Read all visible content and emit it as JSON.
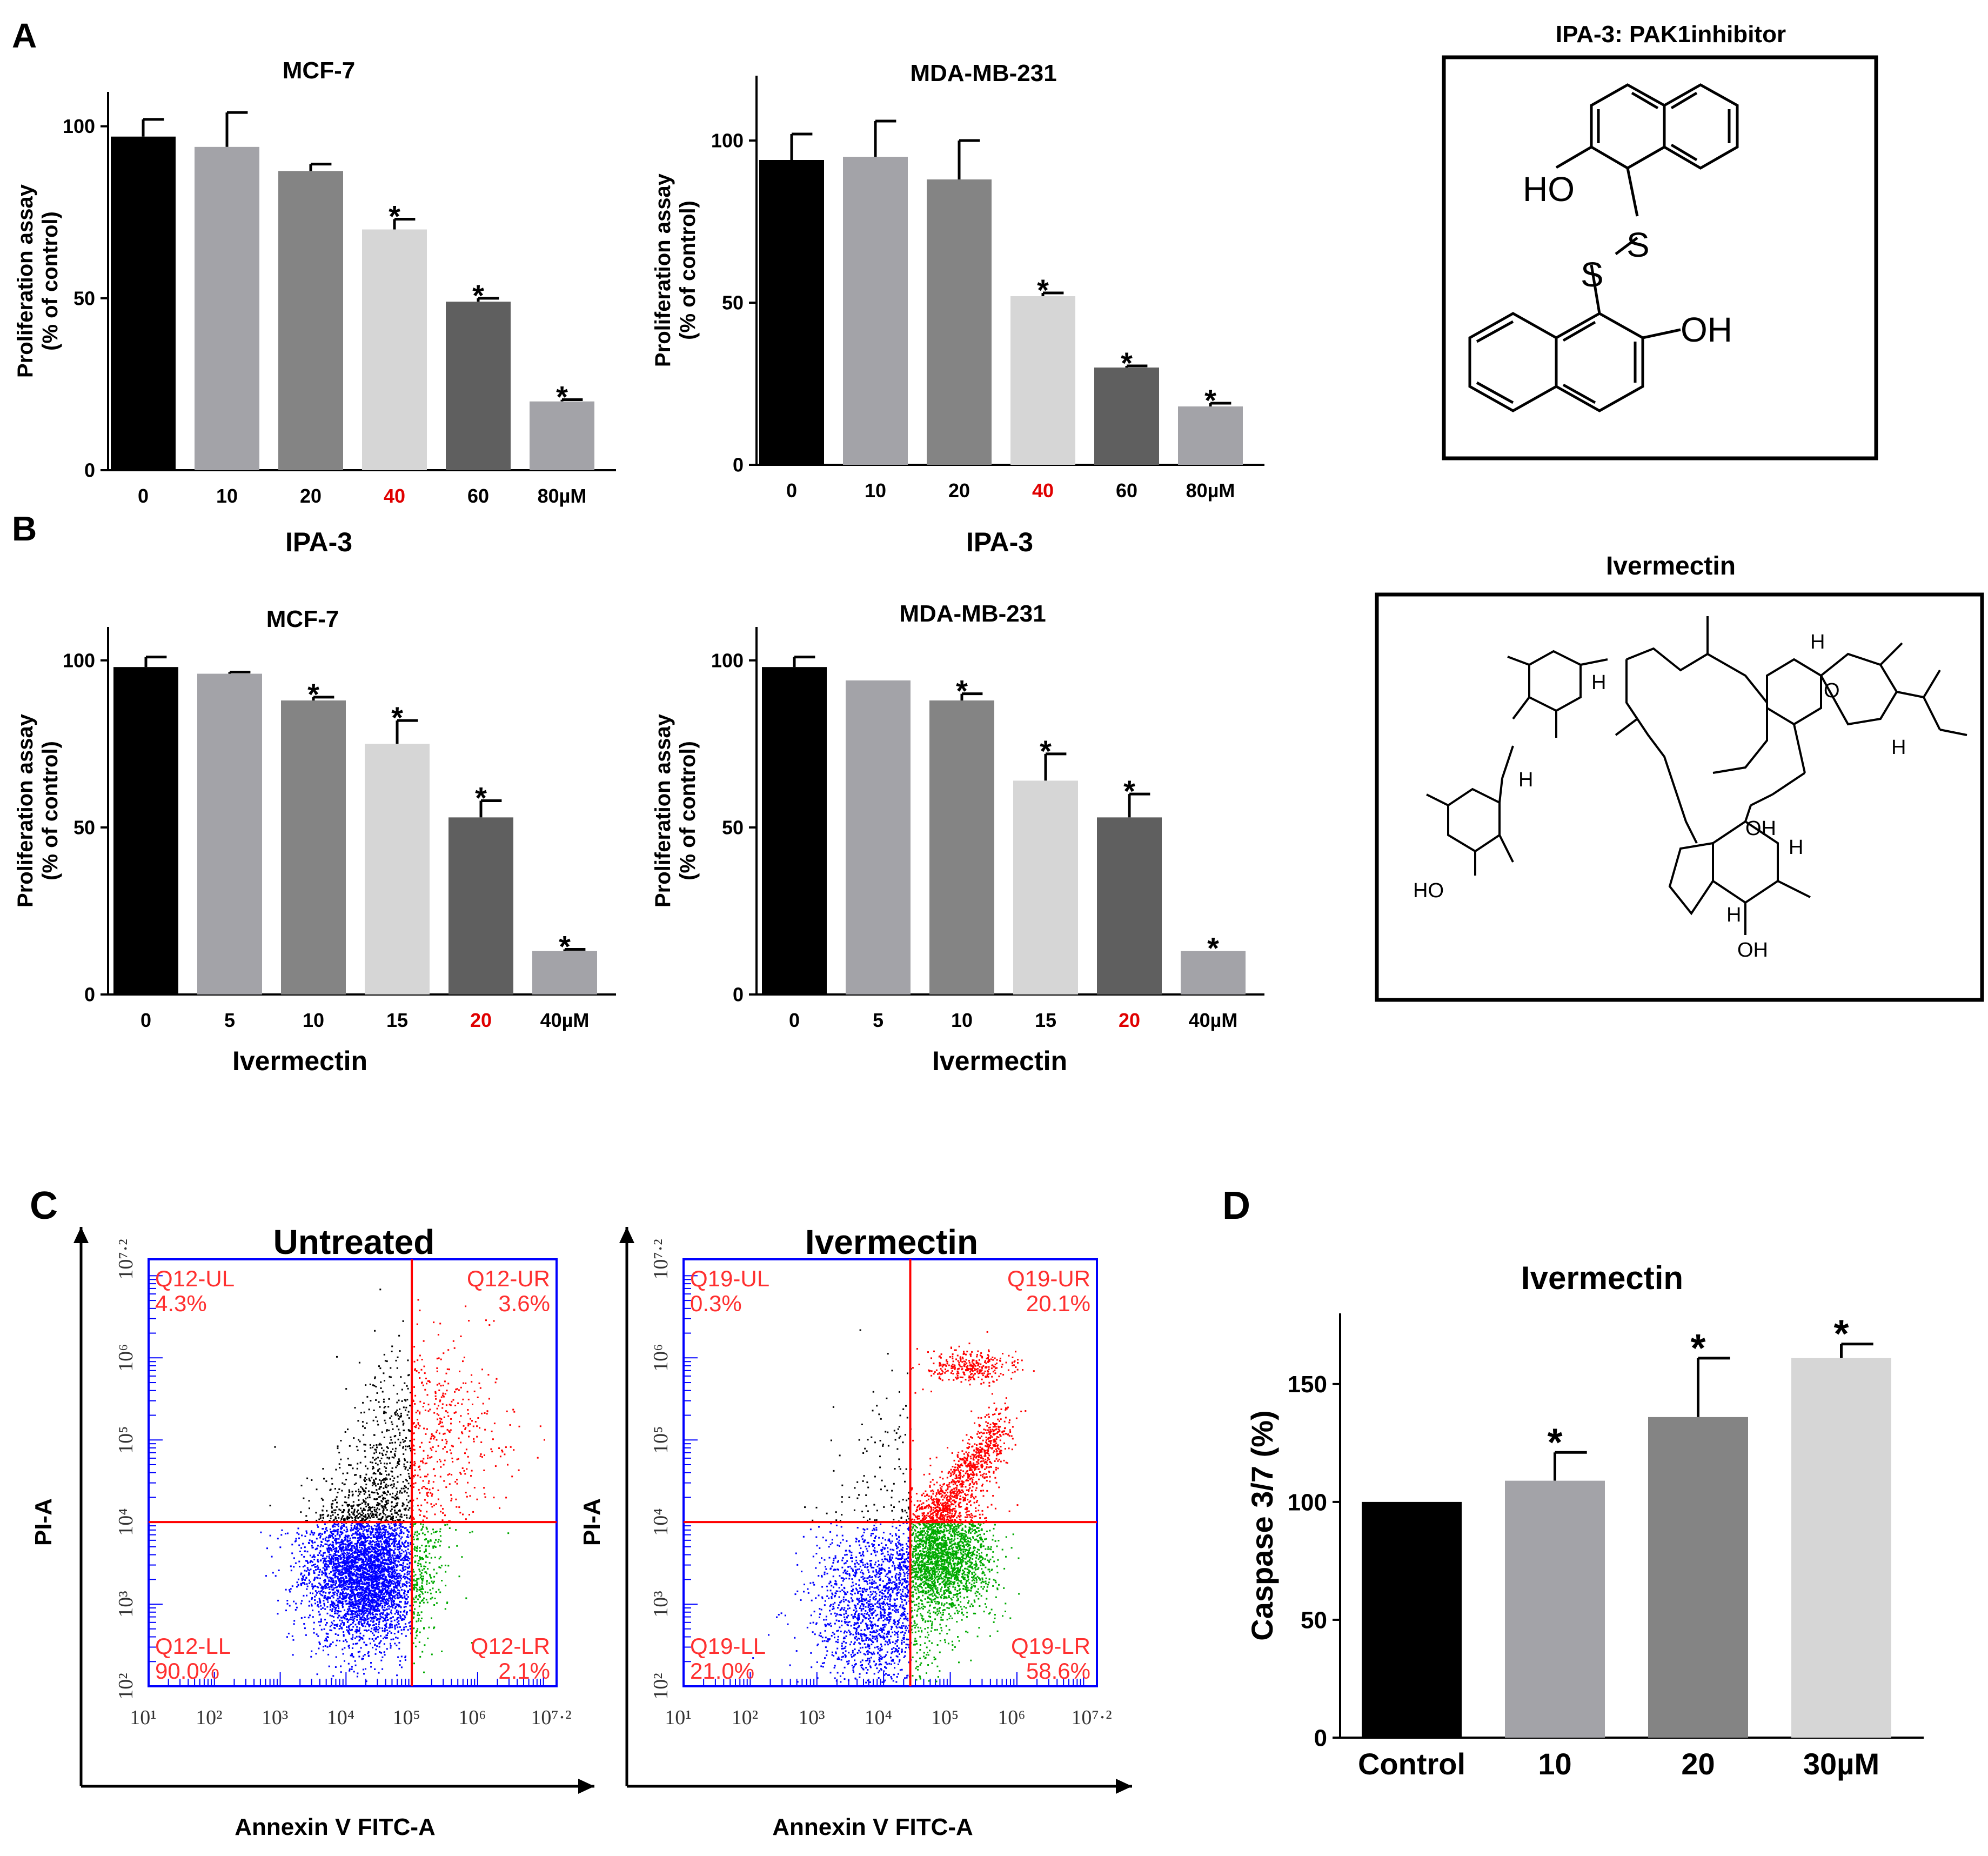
{
  "figure": {
    "panel_labels": {
      "A": "A",
      "B": "B",
      "C": "C",
      "D": "D"
    }
  },
  "colors": {
    "black": "#000000",
    "gray1": "#a3a3a8",
    "gray2": "#848484",
    "gray3": "#d6d6d6",
    "gray4": "#5f5f5f",
    "red_tick": "#e00000",
    "flow_blue": "#0000ff",
    "flow_red": "#ff0000",
    "flow_green": "#00aa00",
    "flow_black": "#000000",
    "gate_red": "#ff0000",
    "axis_blue": "#0000ff",
    "quad_text": "#ff3030"
  },
  "chart_data": [
    {
      "id": "A_mcf7",
      "type": "bar",
      "title": "MCF-7",
      "xlabel": "IPA-3",
      "ylabel_lines": [
        "Proliferation assay",
        "(% of control)"
      ],
      "categories": [
        "0",
        "10",
        "20",
        "40",
        "60",
        "80µM"
      ],
      "highlight_category": "40",
      "values": [
        97,
        94,
        87,
        70,
        49,
        20
      ],
      "errors": [
        5,
        10,
        2,
        3,
        1,
        0.5
      ],
      "significant": [
        "",
        "",
        "",
        "*",
        "*",
        "*"
      ],
      "yticks": [
        0,
        50,
        100
      ],
      "ylim": [
        0,
        110
      ]
    },
    {
      "id": "A_mda",
      "type": "bar",
      "title": "MDA-MB-231",
      "xlabel": "IPA-3",
      "ylabel_lines": [
        "Proliferation assay",
        "(% of control)"
      ],
      "categories": [
        "0",
        "10",
        "20",
        "40",
        "60",
        "80µM"
      ],
      "highlight_category": "40",
      "values": [
        94,
        95,
        88,
        52,
        30,
        18
      ],
      "errors": [
        8,
        11,
        12,
        1,
        0.5,
        1
      ],
      "significant": [
        "",
        "",
        "",
        "*",
        "*",
        "*"
      ],
      "yticks": [
        0,
        50,
        100
      ],
      "ylim": [
        0,
        120
      ]
    },
    {
      "id": "B_mcf7",
      "type": "bar",
      "title": "MCF-7",
      "xlabel": "Ivermectin",
      "ylabel_lines": [
        "Proliferation assay",
        "(% of control)"
      ],
      "categories": [
        "0",
        "5",
        "10",
        "15",
        "20",
        "40µM"
      ],
      "highlight_category": "20",
      "values": [
        98,
        96,
        88,
        75,
        53,
        13
      ],
      "errors": [
        3,
        0.5,
        1,
        7,
        5,
        0.5
      ],
      "significant": [
        "",
        "",
        "*",
        "*",
        "*",
        "*"
      ],
      "yticks": [
        0,
        50,
        100
      ],
      "ylim": [
        0,
        110
      ]
    },
    {
      "id": "B_mda",
      "type": "bar",
      "title": "MDA-MB-231",
      "xlabel": "Ivermectin",
      "ylabel_lines": [
        "Proliferation assay",
        "(% of control)"
      ],
      "categories": [
        "0",
        "5",
        "10",
        "15",
        "20",
        "40µM"
      ],
      "highlight_category": "20",
      "values": [
        98,
        94,
        88,
        64,
        53,
        13
      ],
      "errors": [
        3,
        0,
        2,
        8,
        7,
        0
      ],
      "significant": [
        "",
        "",
        "*",
        "*",
        "*",
        "*"
      ],
      "yticks": [
        0,
        50,
        100
      ],
      "ylim": [
        0,
        110
      ]
    },
    {
      "id": "D_caspase",
      "type": "bar",
      "title": "Ivermectin",
      "xlabel": "",
      "ylabel_lines": [
        "Caspase 3/7 (%)"
      ],
      "categories": [
        "Control",
        "10",
        "20",
        "30µM"
      ],
      "highlight_category": "",
      "values": [
        100,
        109,
        136,
        161
      ],
      "errors": [
        0,
        12,
        25,
        6
      ],
      "significant": [
        "",
        "*",
        "*",
        "*"
      ],
      "yticks": [
        0,
        50,
        100,
        150
      ],
      "ylim": [
        0,
        180
      ]
    },
    {
      "id": "C_untreated",
      "type": "scatter",
      "title": "Untreated",
      "xlabel": "Annexin V FITC-A",
      "ylabel": "PI-A",
      "xticks": [
        "10¹",
        "10²",
        "10³",
        "10⁴",
        "10⁵",
        "10⁶",
        "10⁷·²"
      ],
      "yticks": [
        "10²",
        "10³",
        "10⁴",
        "10⁵",
        "10⁶",
        "10⁷·²"
      ],
      "axis_log_range": [
        1,
        7.2
      ],
      "gate": {
        "x_log": 5.0,
        "y_log": 4.0
      },
      "quadrants": {
        "UL": {
          "name": "Q12-UL",
          "value": "4.3%"
        },
        "UR": {
          "name": "Q12-UR",
          "value": "3.6%"
        },
        "LL": {
          "name": "Q12-LL",
          "value": "90.0%"
        },
        "LR": {
          "name": "Q12-LR",
          "value": "2.1%"
        }
      }
    },
    {
      "id": "C_ivermectin",
      "type": "scatter",
      "title": "Ivermectin",
      "xlabel": "Annexin V FITC-A",
      "ylabel": "PI-A",
      "xticks": [
        "10¹",
        "10²",
        "10³",
        "10⁴",
        "10⁵",
        "10⁶",
        "10⁷·²"
      ],
      "yticks": [
        "10²",
        "10³",
        "10⁴",
        "10⁵",
        "10⁶",
        "10⁷·²"
      ],
      "axis_log_range": [
        1,
        7.2
      ],
      "gate": {
        "x_log": 4.4,
        "y_log": 4.0
      },
      "quadrants": {
        "UL": {
          "name": "Q19-UL",
          "value": "0.3%"
        },
        "UR": {
          "name": "Q19-UR",
          "value": "20.1%"
        },
        "LL": {
          "name": "Q19-LL",
          "value": "21.0%"
        },
        "LR": {
          "name": "Q19-LR",
          "value": "58.6%"
        }
      }
    }
  ],
  "structures": {
    "ipa3": {
      "title": "IPA-3: PAK1inhibitor",
      "labels": {
        "ho": "HO",
        "s1": "S",
        "s2": "S",
        "oh": "OH"
      }
    },
    "ivermectin": {
      "title": "Ivermectin",
      "labels": {
        "oh1": "OH",
        "oh2": "OH",
        "ho": "HO",
        "h1": "H",
        "h2": "H",
        "h3": "H",
        "h4": "H",
        "h5": "H",
        "h6": "H",
        "o": "O"
      }
    }
  }
}
